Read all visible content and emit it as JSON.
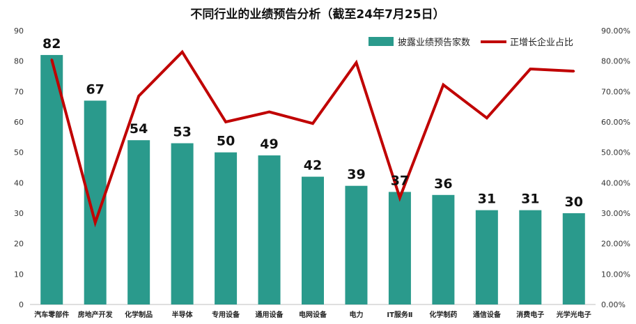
{
  "chart_data": {
    "type": "bar+line",
    "title": "不同行业的业绩预告分析（截至24年7月25日）",
    "categories": [
      "汽车零部件",
      "房地产开发",
      "化学制品",
      "半导体",
      "专用设备",
      "通用设备",
      "电网设备",
      "电力",
      "IT服务Ⅱ",
      "化学制药",
      "通信设备",
      "消费电子",
      "光学光电子"
    ],
    "series": [
      {
        "name": "披露业绩预告家数",
        "type": "bar",
        "axis": "left",
        "color": "#2a9a8c",
        "values": [
          82,
          67,
          54,
          53,
          50,
          49,
          42,
          39,
          37,
          36,
          31,
          31,
          30
        ]
      },
      {
        "name": "正增长企业占比",
        "type": "line",
        "axis": "right",
        "color": "#c00000",
        "values": [
          80.5,
          26.9,
          68.5,
          83.0,
          60.0,
          63.3,
          59.5,
          79.5,
          35.1,
          72.2,
          61.3,
          77.4,
          76.7
        ]
      }
    ],
    "ylim_left": [
      0,
      90
    ],
    "yticks_left": [
      "0",
      "10",
      "20",
      "30",
      "40",
      "50",
      "60",
      "70",
      "80",
      "90"
    ],
    "ylim_right": [
      0,
      90
    ],
    "yticks_right": [
      "0.00%",
      "10.00%",
      "20.00%",
      "30.00%",
      "40.00%",
      "50.00%",
      "60.00%",
      "70.00%",
      "80.00%",
      "90.00%"
    ],
    "legend_position": "top-right",
    "grid": false
  }
}
